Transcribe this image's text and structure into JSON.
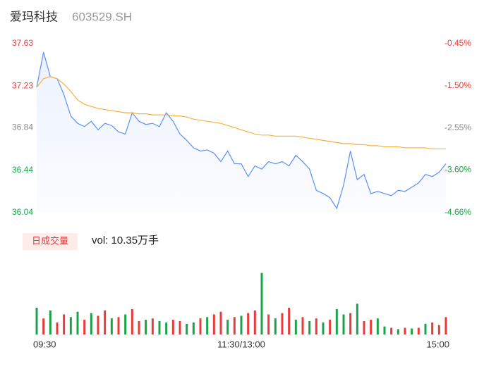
{
  "chart_data": {
    "type": "intraday",
    "title": "爱玛科技",
    "code": "603529.SH",
    "volume_title": "日成交量",
    "volume_text": "vol: 10.35万手",
    "xlim": [
      0,
      240
    ],
    "xticks": [
      {
        "value": 0,
        "label": "09:30"
      },
      {
        "value": 120,
        "label": "11:30/13:00"
      },
      {
        "value": 240,
        "label": "15:00"
      }
    ],
    "ylim": [
      36.04,
      37.63
    ],
    "yticks": [
      37.63,
      37.23,
      36.84,
      36.44,
      36.04
    ],
    "ytick_colors": [
      "#e83b3b",
      "#e83b3b",
      "#888888",
      "#1aa34a",
      "#1aa34a"
    ],
    "y2lim": [
      -4.66,
      -0.45
    ],
    "y2ticks": [
      {
        "value": -0.45,
        "label": "-0.45%"
      },
      {
        "value": -1.5,
        "label": "-1.50%"
      },
      {
        "value": -2.55,
        "label": "-2.55%"
      },
      {
        "value": -3.6,
        "label": "-3.60%"
      },
      {
        "value": -4.66,
        "label": "-4.66%"
      }
    ],
    "x": [
      0,
      4,
      8,
      12,
      16,
      20,
      24,
      28,
      32,
      36,
      40,
      44,
      48,
      52,
      56,
      60,
      64,
      68,
      72,
      76,
      80,
      84,
      88,
      92,
      96,
      100,
      104,
      108,
      112,
      116,
      120,
      124,
      128,
      132,
      136,
      140,
      144,
      148,
      152,
      156,
      160,
      164,
      168,
      172,
      176,
      180,
      184,
      188,
      192,
      196,
      200,
      204,
      208,
      212,
      216,
      220,
      224,
      228,
      232,
      236,
      240
    ],
    "series": [
      {
        "color": "#5b8ff9",
        "values": [
          37.22,
          37.55,
          37.32,
          37.3,
          37.15,
          36.95,
          36.88,
          36.85,
          36.9,
          36.82,
          36.88,
          36.86,
          36.8,
          36.78,
          36.98,
          36.9,
          36.87,
          36.88,
          36.85,
          36.98,
          36.9,
          36.78,
          36.72,
          36.65,
          36.62,
          36.63,
          36.6,
          36.52,
          36.62,
          36.5,
          36.5,
          36.38,
          36.48,
          36.45,
          36.52,
          36.5,
          36.52,
          36.48,
          36.58,
          36.52,
          36.45,
          36.25,
          36.22,
          36.18,
          36.08,
          36.3,
          36.62,
          36.35,
          36.4,
          36.22,
          36.24,
          36.22,
          36.2,
          36.25,
          36.24,
          36.28,
          36.32,
          36.4,
          36.38,
          36.42,
          36.5
        ]
      },
      {
        "color": "#f5b23d",
        "values": [
          37.22,
          37.3,
          37.32,
          37.3,
          37.25,
          37.18,
          37.1,
          37.06,
          37.04,
          37.02,
          37.01,
          37.0,
          36.99,
          36.98,
          36.98,
          36.97,
          36.97,
          36.96,
          36.96,
          36.96,
          36.95,
          36.95,
          36.94,
          36.92,
          36.91,
          36.9,
          36.89,
          36.88,
          36.86,
          36.84,
          36.82,
          36.8,
          36.78,
          36.77,
          36.77,
          36.76,
          36.76,
          36.76,
          36.76,
          36.75,
          36.74,
          36.73,
          36.72,
          36.71,
          36.7,
          36.69,
          36.69,
          36.68,
          36.68,
          36.67,
          36.67,
          36.66,
          36.66,
          36.66,
          36.65,
          36.65,
          36.65,
          36.65,
          36.64,
          36.64,
          36.64
        ]
      }
    ],
    "volume_ylim": [
      0,
      5000
    ],
    "volume": [
      2000,
      1200,
      1800,
      900,
      1500,
      1300,
      1700,
      1100,
      1600,
      1400,
      1800,
      1200,
      1300,
      1500,
      1900,
      1000,
      1100,
      1200,
      1000,
      900,
      1100,
      1000,
      800,
      900,
      1200,
      1300,
      1500,
      1700,
      1100,
      1300,
      1400,
      1600,
      1800,
      4600,
      1500,
      1200,
      1600,
      2000,
      1100,
      1300,
      1000,
      1200,
      900,
      1100,
      1900,
      1500,
      1600,
      2300,
      1000,
      1100,
      1200,
      600,
      500,
      400,
      500,
      450,
      500,
      800,
      900,
      700,
      1300
    ],
    "volume_colors": [
      "#1aa34a",
      "#e83b3b",
      "#1aa34a",
      "#e83b3b",
      "#e83b3b",
      "#1aa34a",
      "#1aa34a",
      "#e83b3b",
      "#1aa34a",
      "#e83b3b",
      "#e83b3b",
      "#1aa34a",
      "#e83b3b",
      "#1aa34a",
      "#e83b3b",
      "#e83b3b",
      "#1aa34a",
      "#e83b3b",
      "#1aa34a",
      "#1aa34a",
      "#e83b3b",
      "#e83b3b",
      "#1aa34a",
      "#1aa34a",
      "#e83b3b",
      "#1aa34a",
      "#e83b3b",
      "#e83b3b",
      "#1aa34a",
      "#e83b3b",
      "#1aa34a",
      "#e83b3b",
      "#e83b3b",
      "#1aa34a",
      "#e83b3b",
      "#1aa34a",
      "#e83b3b",
      "#e83b3b",
      "#1aa34a",
      "#e83b3b",
      "#1aa34a",
      "#e83b3b",
      "#1aa34a",
      "#e83b3b",
      "#1aa34a",
      "#1aa34a",
      "#e83b3b",
      "#1aa34a",
      "#e83b3b",
      "#e83b3b",
      "#1aa34a",
      "#1aa34a",
      "#e83b3b",
      "#1aa34a",
      "#e83b3b",
      "#1aa34a",
      "#e83b3b",
      "#1aa34a",
      "#e83b3b",
      "#e83b3b",
      "#e83b3b"
    ]
  }
}
